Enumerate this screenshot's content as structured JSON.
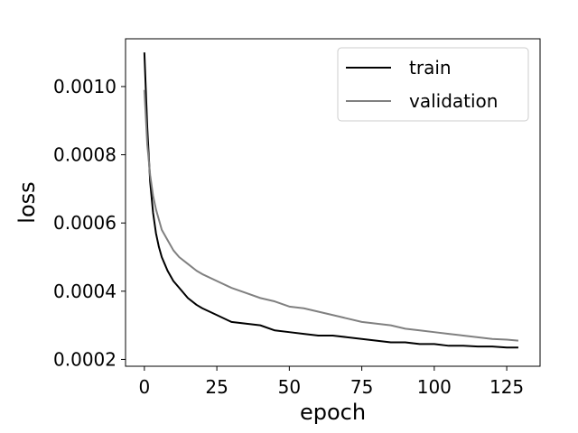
{
  "chart_data": {
    "type": "line",
    "title": "",
    "xlabel": "epoch",
    "ylabel": "loss",
    "xlim": [
      -6.5,
      136.5
    ],
    "ylim": [
      0.00018,
      0.00114
    ],
    "xticks": [
      0,
      25,
      50,
      75,
      100,
      125
    ],
    "xtick_labels": [
      "0",
      "25",
      "50",
      "75",
      "100",
      "125"
    ],
    "yticks": [
      0.0002,
      0.0004,
      0.0006,
      0.0008,
      0.001
    ],
    "ytick_labels": [
      "0.0002",
      "0.0004",
      "0.0006",
      "0.0008",
      "0.0010"
    ],
    "grid": false,
    "legend_position": "top-right",
    "series": [
      {
        "name": "train",
        "color": "#000000",
        "x": [
          0,
          1,
          2,
          3,
          4,
          5,
          6,
          7,
          8,
          10,
          12,
          15,
          18,
          20,
          25,
          30,
          35,
          40,
          45,
          50,
          55,
          60,
          65,
          70,
          75,
          80,
          85,
          90,
          95,
          100,
          105,
          110,
          115,
          120,
          125,
          129
        ],
        "y": [
          0.0011,
          0.00088,
          0.00072,
          0.00063,
          0.00057,
          0.00053,
          0.0005,
          0.00048,
          0.00046,
          0.00043,
          0.00041,
          0.00038,
          0.00036,
          0.00035,
          0.00033,
          0.00031,
          0.000305,
          0.0003,
          0.000285,
          0.00028,
          0.000275,
          0.00027,
          0.00027,
          0.000265,
          0.00026,
          0.000255,
          0.00025,
          0.00025,
          0.000245,
          0.000245,
          0.00024,
          0.00024,
          0.000238,
          0.000238,
          0.000235,
          0.000235
        ]
      },
      {
        "name": "validation",
        "color": "#808080",
        "x": [
          0,
          1,
          2,
          3,
          4,
          5,
          6,
          8,
          10,
          12,
          15,
          18,
          20,
          25,
          30,
          35,
          40,
          45,
          50,
          55,
          60,
          65,
          70,
          75,
          80,
          85,
          90,
          95,
          100,
          105,
          110,
          115,
          120,
          125,
          129
        ],
        "y": [
          0.00099,
          0.00083,
          0.00074,
          0.00068,
          0.00064,
          0.00061,
          0.00058,
          0.00055,
          0.00052,
          0.0005,
          0.00048,
          0.00046,
          0.00045,
          0.00043,
          0.00041,
          0.000395,
          0.00038,
          0.00037,
          0.000355,
          0.00035,
          0.00034,
          0.00033,
          0.00032,
          0.00031,
          0.000305,
          0.0003,
          0.00029,
          0.000285,
          0.00028,
          0.000275,
          0.00027,
          0.000265,
          0.00026,
          0.000258,
          0.000255
        ]
      }
    ]
  }
}
